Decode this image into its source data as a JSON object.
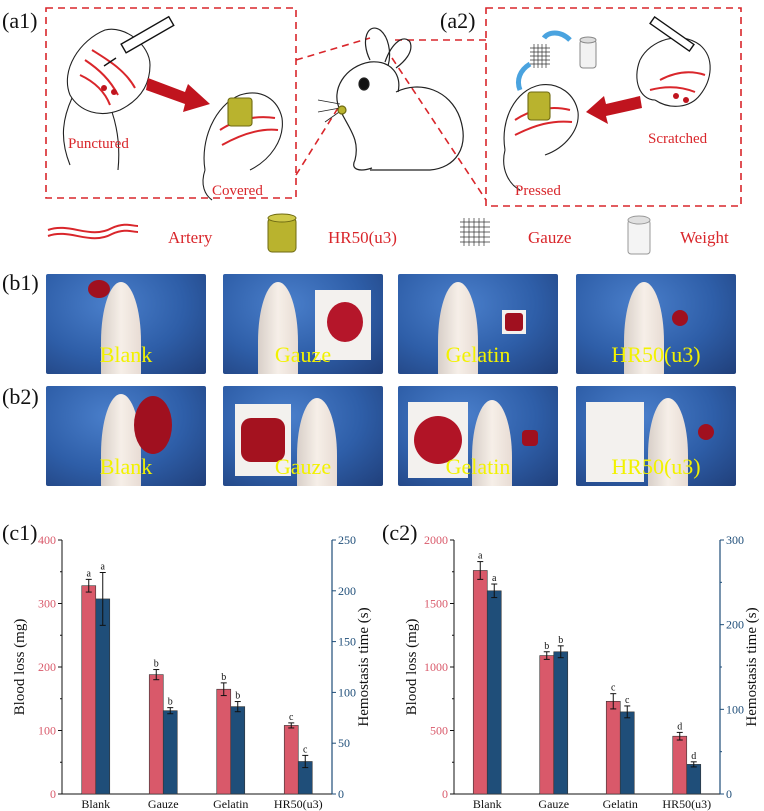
{
  "panel_labels": {
    "a1": "(a1)",
    "a2": "(a2)",
    "b1": "(b1)",
    "b2": "(b2)",
    "c1": "(c1)",
    "c2": "(c2)"
  },
  "a1_text": {
    "punctured": "Punctured",
    "covered": "Covered"
  },
  "a2_text": {
    "pressed": "Pressed",
    "scratched": "Scratched"
  },
  "legend": {
    "artery": "Artery",
    "hr50": "HR50(u3)",
    "gauze": "Gauze",
    "weight": "Weight"
  },
  "photos_b1": [
    "Blank",
    "Gauze",
    "Gelatin",
    "HR50(u3)"
  ],
  "photos_b2": [
    "Blank",
    "Gauze",
    "Gelatin",
    "HR50(u3)"
  ],
  "colors": {
    "blood_loss": "#d9596a",
    "hemostasis": "#1f4e79",
    "dashed": "#d9262b"
  },
  "chart_data": [
    {
      "type": "bar",
      "categories": [
        "Blank",
        "Gauze",
        "Gelatin",
        "HR50(u3)"
      ],
      "ylabel": "Blood loss (mg)",
      "y2label": "Hemostasis time (s)",
      "ylim": [
        0,
        400
      ],
      "y2lim": [
        0,
        250
      ],
      "yticks": [
        0,
        100,
        200,
        300,
        400
      ],
      "y2ticks": [
        0,
        50,
        100,
        150,
        200,
        250
      ],
      "series": [
        {
          "axis": "left",
          "values": [
            328,
            188,
            165,
            108
          ],
          "errors": [
            10,
            8,
            10,
            4
          ],
          "letters": [
            "a",
            "b",
            "b",
            "c"
          ]
        },
        {
          "axis": "right",
          "values": [
            192,
            82,
            86,
            32
          ],
          "errors": [
            26,
            3,
            5,
            6
          ],
          "letters": [
            "a",
            "b",
            "b",
            "c"
          ]
        }
      ]
    },
    {
      "type": "bar",
      "categories": [
        "Blank",
        "Gauze",
        "Gelatin",
        "HR50(u3)"
      ],
      "ylabel": "Blood loss (mg)",
      "y2label": "Hemostasis time (s)",
      "ylim": [
        0,
        2000
      ],
      "y2lim": [
        0,
        300
      ],
      "yticks": [
        0,
        500,
        1000,
        1500,
        2000
      ],
      "y2ticks": [
        0,
        100,
        200,
        300
      ],
      "y2minor": [
        50,
        150,
        250
      ],
      "series": [
        {
          "axis": "left",
          "values": [
            1760,
            1090,
            730,
            455
          ],
          "errors": [
            70,
            30,
            60,
            30
          ],
          "letters": [
            "a",
            "b",
            "c",
            "d"
          ]
        },
        {
          "axis": "right",
          "values": [
            240,
            168,
            97,
            35
          ],
          "errors": [
            8,
            7,
            7,
            3
          ],
          "letters": [
            "a",
            "b",
            "c",
            "d"
          ]
        }
      ]
    }
  ]
}
